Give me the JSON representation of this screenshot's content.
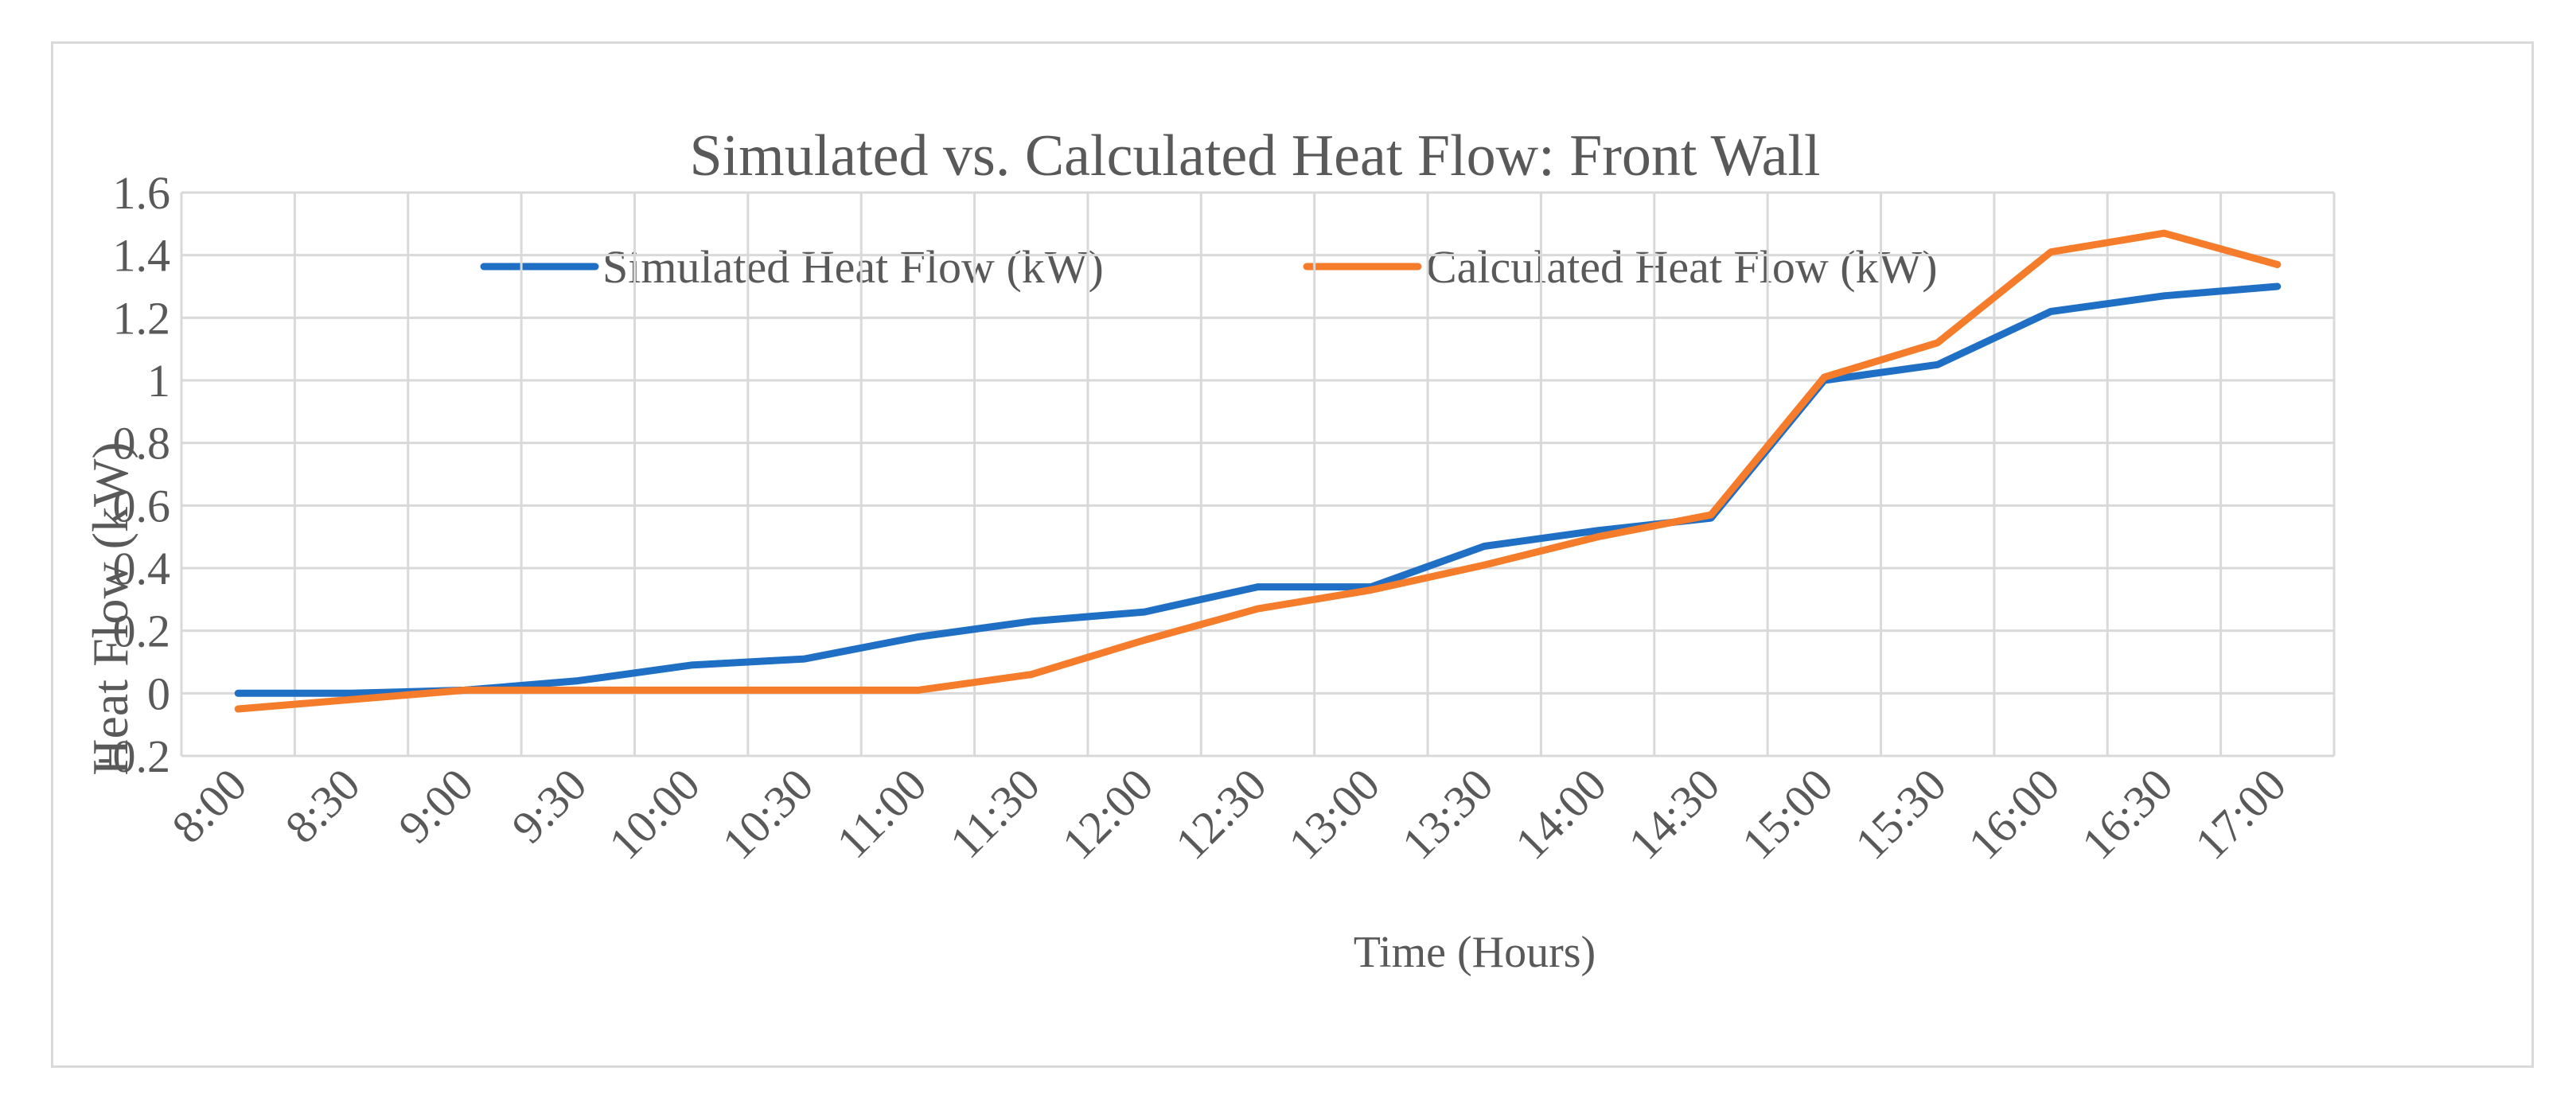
{
  "chart_data": {
    "type": "line",
    "title": "Simulated vs. Calculated Heat Flow: Front Wall",
    "xlabel": "Time (Hours)",
    "ylabel": "Heat Flow (kW)",
    "ylim": [
      -0.2,
      1.6
    ],
    "yticks": [
      "-0.2",
      "0",
      "0.2",
      "0.4",
      "0.6",
      "0.8",
      "1",
      "1.2",
      "1.4",
      "1.6"
    ],
    "ytick_values": [
      -0.2,
      0,
      0.2,
      0.4,
      0.6,
      0.8,
      1,
      1.2,
      1.4,
      1.6
    ],
    "categories": [
      "8:00",
      "8:30",
      "9:00",
      "9:30",
      "10:00",
      "10:30",
      "11:00",
      "11:30",
      "12:00",
      "12:30",
      "13:00",
      "13:30",
      "14:00",
      "14:30",
      "15:00",
      "15:30",
      "16:00",
      "16:30",
      "17:00"
    ],
    "grid": true,
    "legend_position": "top-center",
    "series": [
      {
        "name": "Simulated Heat Flow (kW)",
        "color": "#1f6fc5",
        "values": [
          0.0,
          0.0,
          0.01,
          0.04,
          0.09,
          0.11,
          0.18,
          0.23,
          0.26,
          0.34,
          0.34,
          0.47,
          0.52,
          0.56,
          1.0,
          1.05,
          1.22,
          1.27,
          1.3
        ]
      },
      {
        "name": "Calculated Heat Flow (kW)",
        "color": "#f57c2b",
        "values": [
          -0.05,
          -0.02,
          0.01,
          0.01,
          0.01,
          0.01,
          0.01,
          0.06,
          0.17,
          0.27,
          0.33,
          0.41,
          0.5,
          0.57,
          1.01,
          1.12,
          1.41,
          1.47,
          1.37
        ]
      }
    ]
  }
}
